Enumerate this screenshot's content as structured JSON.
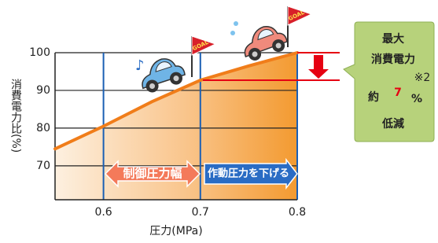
{
  "chart_data": {
    "type": "line",
    "x_label": "圧力(MPa)",
    "y_label": "消費電力比(%)",
    "x": [
      0.55,
      0.6,
      0.65,
      0.7,
      0.75,
      0.8
    ],
    "series": [
      {
        "color": "#f07d1a",
        "values": [
          74.5,
          80.5,
          87,
          92.7,
          96.5,
          100
        ]
      }
    ],
    "xlim": [
      0.55,
      0.8
    ],
    "xticks": [
      0.6,
      0.7,
      0.8
    ],
    "ylim": [
      61,
      100
    ],
    "yticks": [
      70,
      80,
      90,
      100
    ],
    "annotations": {
      "left_arrow": "制御圧力幅",
      "right_arrow": "作動圧力を下げる",
      "callout": [
        "最大",
        "消費電力",
        "約",
        "7",
        "%",
        "※2",
        "低減"
      ],
      "goal": [
        "GOAL",
        "GOAL"
      ]
    }
  }
}
